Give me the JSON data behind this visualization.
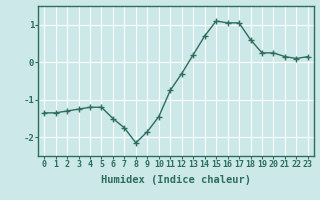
{
  "x": [
    0,
    1,
    2,
    3,
    4,
    5,
    6,
    7,
    8,
    9,
    10,
    11,
    12,
    13,
    14,
    15,
    16,
    17,
    18,
    19,
    20,
    21,
    22,
    23
  ],
  "y": [
    -1.35,
    -1.35,
    -1.3,
    -1.25,
    -1.2,
    -1.2,
    -1.5,
    -1.75,
    -2.15,
    -1.85,
    -1.45,
    -0.75,
    -0.3,
    0.2,
    0.7,
    1.1,
    1.05,
    1.05,
    0.6,
    0.25,
    0.25,
    0.15,
    0.1,
    0.15
  ],
  "xlabel": "Humidex (Indice chaleur)",
  "xlim": [
    -0.5,
    23.5
  ],
  "ylim": [
    -2.5,
    1.5
  ],
  "yticks": [
    -2,
    -1,
    0,
    1
  ],
  "ytick_labels": [
    "-2",
    "-1",
    "0",
    "1"
  ],
  "xtick_labels": [
    "0",
    "1",
    "2",
    "3",
    "4",
    "5",
    "6",
    "7",
    "8",
    "9",
    "10",
    "11",
    "12",
    "13",
    "14",
    "15",
    "16",
    "17",
    "18",
    "19",
    "20",
    "21",
    "22",
    "23"
  ],
  "line_color": "#2d6e5e",
  "marker": "+",
  "marker_size": 4.0,
  "marker_lw": 1.0,
  "bg_color": "#cce8e8",
  "grid_color": "#ffffff",
  "axis_color": "#2d6e5e",
  "xlabel_fontsize": 7.5,
  "tick_fontsize": 6.0,
  "line_width": 1.0
}
